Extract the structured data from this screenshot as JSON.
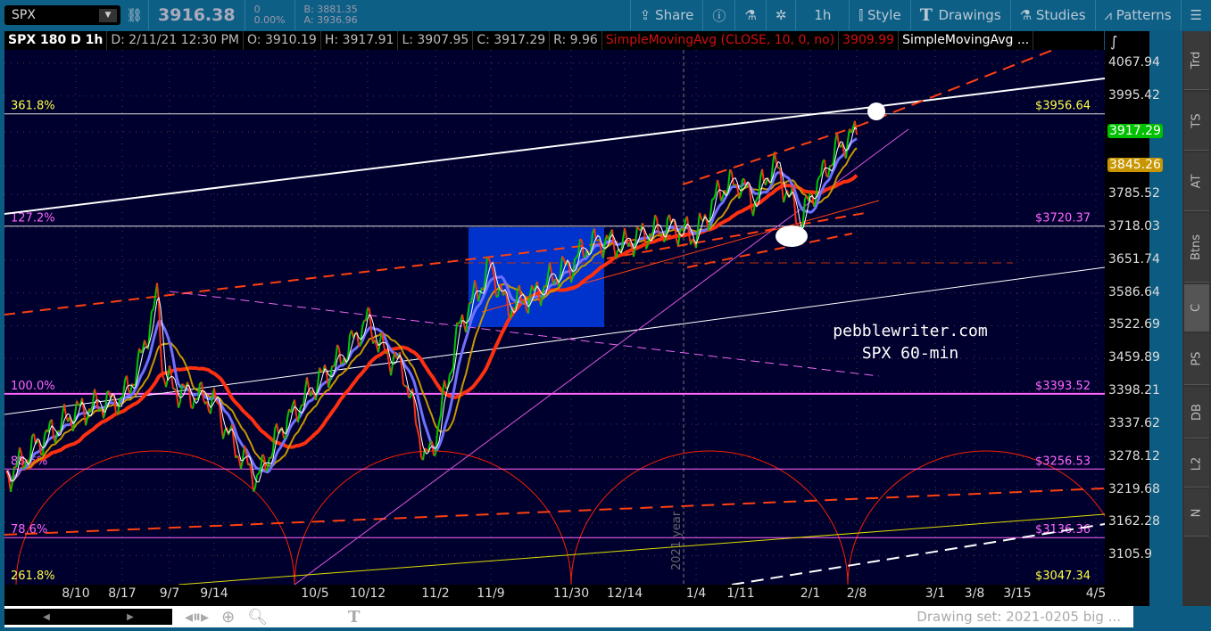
{
  "toolbar": {
    "symbol": "SPX",
    "last": "3916.38",
    "change": "0",
    "change_pct": "0.00%",
    "bid": "B: 3881.35",
    "ask": "A: 3936.96",
    "share": "Share",
    "interval": "1h",
    "style": "Style",
    "drawings": "Drawings",
    "studies": "Studies",
    "patterns": "Patterns"
  },
  "header": {
    "title": "SPX 180 D 1h",
    "date": "D: 2/11/21 12:30 PM",
    "open": "O: 3910.19",
    "high": "H: 3917.91",
    "low": "L: 3907.95",
    "close": "C: 3917.29",
    "range": "R: 9.96",
    "study1": "SimpleMovingAvg (CLOSE, 10, 0, no)",
    "study1_value": "3909.99",
    "study2": "SimpleMovingAvg ..."
  },
  "side_tabs": [
    "Trd",
    "TS",
    "AT",
    "Btns",
    "C",
    "PS",
    "DB",
    "L2",
    "N"
  ],
  "selected_tab": "C",
  "bottom": {
    "drawing_set": "Drawing set: 2021-0205 big ..."
  },
  "watermark": {
    "line1": "pebblewriter.com",
    "line2": "SPX 60-min"
  },
  "year_marker": "2021 year",
  "colors": {
    "background": "#00002e",
    "up": "#00c800",
    "down": "#ff3010",
    "last_marker": "#00c000",
    "sma_marker": "#c89600",
    "fib": "#ff66ff",
    "fib_label_top": "#ffff44"
  },
  "chart_data": {
    "type": "line",
    "title": "SPX 180 D 1h",
    "yscale": "log",
    "ylim": [
      3058,
      4140
    ],
    "y_ticks": [
      4067.94,
      3995.42,
      3917.29,
      3845.26,
      3785.52,
      3718.03,
      3651.74,
      3586.64,
      3522.69,
      3459.89,
      3398.21,
      3337.62,
      3278.12,
      3219.68,
      3162.28,
      3105.9
    ],
    "x_ticks": [
      "8/10",
      "8/17",
      "9/7",
      "9/14",
      "10/5",
      "10/12",
      "11/2",
      "11/9",
      "11/30",
      "12/14",
      "1/4",
      "1/11",
      "2/1",
      "2/8",
      "3/1",
      "3/8",
      "3/15",
      "4/5"
    ],
    "grid": true,
    "markers": [
      {
        "label": "3917.29",
        "color": "#00c000"
      },
      {
        "label": "3845.26",
        "color": "#c89600"
      }
    ],
    "series": [
      {
        "x": [
          "7/30",
          "8/4",
          "8/10",
          "8/17",
          "8/24",
          "9/2",
          "9/4",
          "9/8",
          "9/14",
          "9/18",
          "9/23",
          "9/28",
          "10/5",
          "10/9",
          "10/12",
          "10/16",
          "10/23",
          "10/30",
          "11/2",
          "11/5",
          "11/9",
          "11/13",
          "11/20",
          "11/27",
          "11/30",
          "12/4",
          "12/8",
          "12/14",
          "12/18",
          "12/28",
          "1/4",
          "1/8",
          "1/11",
          "1/15",
          "1/21",
          "1/27",
          "1/29",
          "2/1",
          "2/5",
          "2/8",
          "2/11"
        ],
        "values": [
          3240,
          3300,
          3360,
          3385,
          3440,
          3585,
          3430,
          3400,
          3380,
          3300,
          3237,
          3330,
          3410,
          3470,
          3535,
          3480,
          3440,
          3270,
          3310,
          3520,
          3640,
          3560,
          3580,
          3630,
          3640,
          3680,
          3690,
          3680,
          3700,
          3720,
          3700,
          3800,
          3810,
          3770,
          3850,
          3760,
          3720,
          3780,
          3880,
          3917,
          3917.29
        ]
      }
    ],
    "fib_levels": [
      {
        "label": "361.8%",
        "price": 3956.64,
        "price_label": "$3956.64"
      },
      {
        "label": "127.2%",
        "price": 3720.37,
        "price_label": "$3720.37"
      },
      {
        "label": "100.0%",
        "price": 3393.52,
        "price_label": "$3393.52"
      },
      {
        "label": "88.6%",
        "price": 3256.53,
        "price_label": "$3256.53"
      },
      {
        "label": "78.6%",
        "price": 3136.36,
        "price_label": "$3136.36"
      },
      {
        "label": "261.8%",
        "price": 3047.34,
        "price_label": "$3047.34"
      }
    ]
  }
}
